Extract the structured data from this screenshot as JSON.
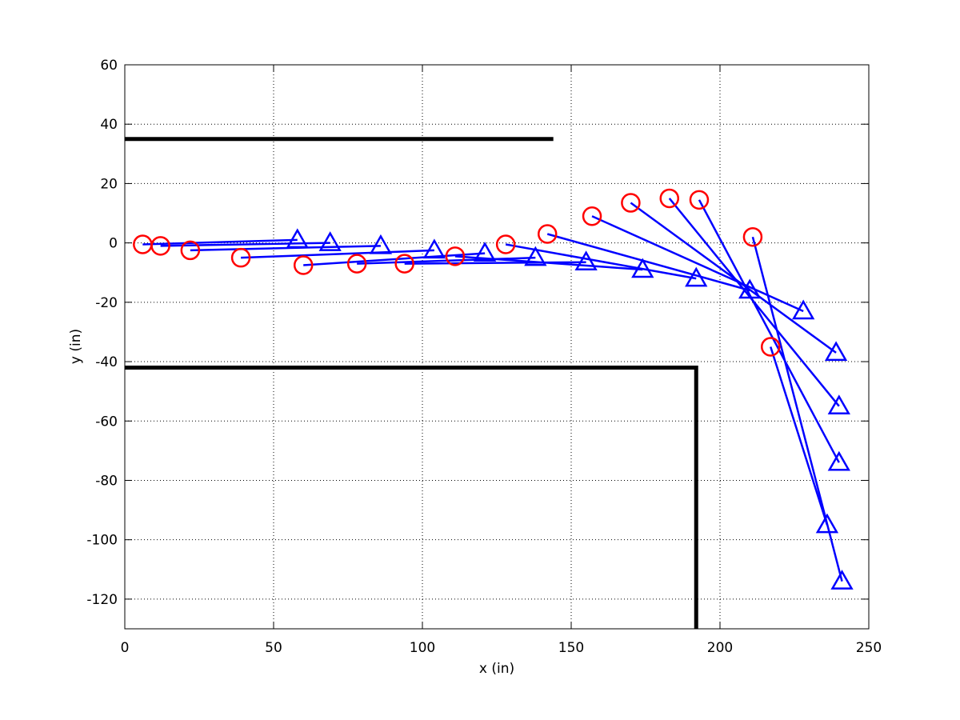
{
  "chart_data": {
    "type": "scatter",
    "title": "",
    "xlabel": "x (in)",
    "ylabel": "y (in)",
    "xlim": [
      0,
      250
    ],
    "ylim": [
      -130,
      60
    ],
    "xticks": [
      0,
      50,
      100,
      150,
      200,
      250
    ],
    "yticks": [
      -120,
      -100,
      -80,
      -60,
      -40,
      -20,
      0,
      20,
      40,
      60
    ],
    "xtick_labels": [
      "0",
      "50",
      "100",
      "150",
      "200",
      "250"
    ],
    "ytick_labels": [
      "-120",
      "-100",
      "-80",
      "-60",
      "-40",
      "-20",
      "0",
      "20",
      "40",
      "60"
    ],
    "grid": true,
    "colors": {
      "start_marker": "#ff0000",
      "end_marker": "#0000ff",
      "link": "#0000ff",
      "wall": "#000000"
    },
    "walls": [
      {
        "points": [
          [
            0,
            35
          ],
          [
            144,
            35
          ]
        ]
      },
      {
        "points": [
          [
            0,
            -42
          ],
          [
            192,
            -42
          ],
          [
            192,
            -130
          ]
        ]
      }
    ],
    "pairs": [
      {
        "start": [
          6,
          -0.5
        ],
        "end": [
          58,
          1
        ]
      },
      {
        "start": [
          12,
          -1
        ],
        "end": [
          69,
          0
        ]
      },
      {
        "start": [
          22,
          -2.5
        ],
        "end": [
          86,
          -1
        ]
      },
      {
        "start": [
          39,
          -5
        ],
        "end": [
          104,
          -2.5
        ]
      },
      {
        "start": [
          60,
          -7.5
        ],
        "end": [
          121,
          -3.5
        ]
      },
      {
        "start": [
          78,
          -7
        ],
        "end": [
          138,
          -5
        ]
      },
      {
        "start": [
          94,
          -7
        ],
        "end": [
          155,
          -6.5
        ]
      },
      {
        "start": [
          111,
          -4.5
        ],
        "end": [
          174,
          -9
        ]
      },
      {
        "start": [
          128,
          -0.5
        ],
        "end": [
          192,
          -12
        ]
      },
      {
        "start": [
          142,
          3
        ],
        "end": [
          210,
          -16
        ]
      },
      {
        "start": [
          157,
          9
        ],
        "end": [
          228,
          -23
        ]
      },
      {
        "start": [
          170,
          13.5
        ],
        "end": [
          239,
          -37
        ]
      },
      {
        "start": [
          183,
          15
        ],
        "end": [
          240,
          -55
        ]
      },
      {
        "start": [
          193,
          14.5
        ],
        "end": [
          240,
          -74
        ]
      },
      {
        "start": [
          211,
          2
        ],
        "end": [
          241,
          -114
        ]
      },
      {
        "start": [
          217,
          -35
        ],
        "end": [
          236,
          -95
        ]
      }
    ]
  }
}
